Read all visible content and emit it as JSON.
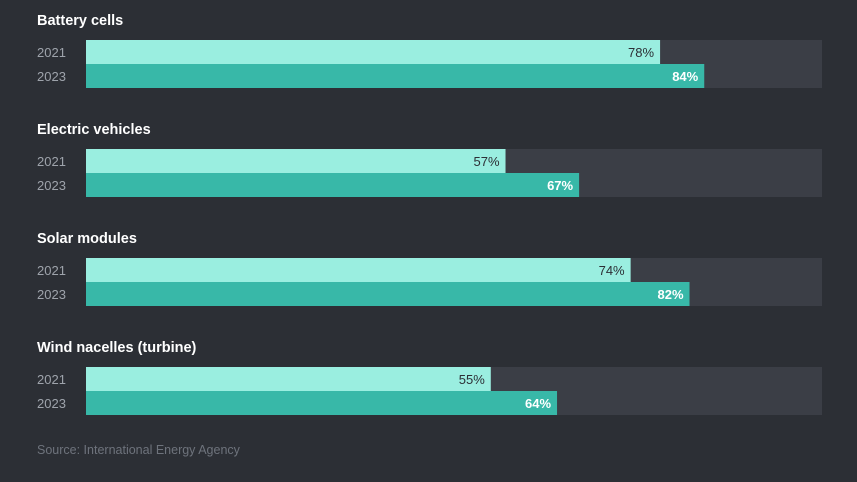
{
  "chart_data": {
    "type": "bar",
    "orientation": "horizontal",
    "series": [
      {
        "name": "2021",
        "color": "#9aeee0",
        "label_color": "#2c2f35"
      },
      {
        "name": "2023",
        "color": "#38b8a8",
        "label_color": "#ffffff"
      }
    ],
    "groups": [
      {
        "category": "Battery cells",
        "values": [
          78,
          84
        ]
      },
      {
        "category": "Electric vehicles",
        "values": [
          57,
          67
        ]
      },
      {
        "category": "Solar modules",
        "values": [
          74,
          82
        ]
      },
      {
        "category": "Wind nacelles (turbine)",
        "values": [
          55,
          64
        ]
      }
    ],
    "value_suffix": "%",
    "xlim": [
      0,
      100
    ],
    "track_color": "#3b3e46",
    "background_color": "#2c2f35"
  },
  "source": "Source: International Energy Agency"
}
